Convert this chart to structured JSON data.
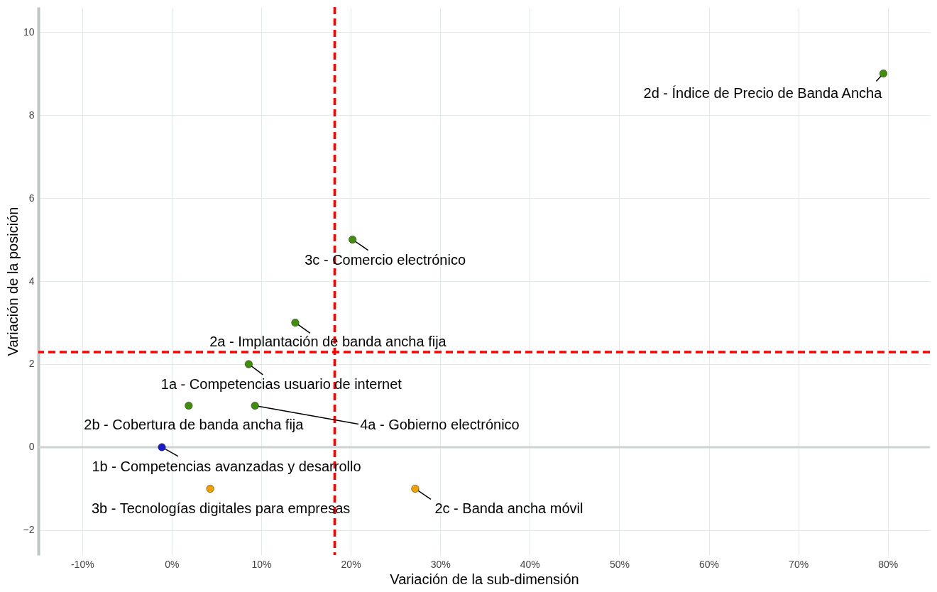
{
  "chart_data": {
    "type": "scatter",
    "xlabel": "Variación de la sub-dimensión",
    "ylabel": "Variación de la posición",
    "x": [
      0.795,
      0.202,
      0.138,
      0.086,
      0.019,
      0.093,
      -0.011,
      0.043,
      0.272
    ],
    "values": [
      9,
      5,
      3,
      2,
      1,
      1,
      0,
      -1,
      -1
    ],
    "colors": [
      "#3f8f0a",
      "#3f8f0a",
      "#3f8f0a",
      "#3f8f0a",
      "#3f8f0a",
      "#3f8f0a",
      "#1a1acc",
      "#f0a000",
      "#f0a000"
    ],
    "xlim": [
      -0.149,
      0.847
    ],
    "ylim": [
      -2.6,
      10.6
    ],
    "xticks": [
      {
        "value": -0.1,
        "label": "-10%"
      },
      {
        "value": 0,
        "label": "0%"
      },
      {
        "value": 0.1,
        "label": "10%"
      },
      {
        "value": 0.2,
        "label": "20%"
      },
      {
        "value": 0.3,
        "label": "30%"
      },
      {
        "value": 0.4,
        "label": "40%"
      },
      {
        "value": 0.5,
        "label": "50%"
      },
      {
        "value": 0.6,
        "label": "60%"
      },
      {
        "value": 0.7,
        "label": "70%"
      },
      {
        "value": 0.8,
        "label": "80%"
      }
    ],
    "yticks": [
      -2,
      0,
      2,
      4,
      6,
      8,
      10
    ],
    "grid": true,
    "marker": "circle",
    "ref_lines": [
      {
        "axis": "y",
        "value": 0,
        "color": "#cdd2d2",
        "line_style": "solid"
      },
      {
        "axis": "x",
        "value": 0.182,
        "color": "#ff0000",
        "line_style": "dashed"
      },
      {
        "axis": "y",
        "value": 2.29,
        "color": "#ff0000",
        "line_style": "dashed"
      }
    ],
    "annotations": [
      {
        "text": "2d - Índice de Precio de Banda Ancha",
        "x": 0.795,
        "y": 9
      },
      {
        "text": "3c - Comercio electrónico",
        "x": 0.202,
        "y": 5
      },
      {
        "text": "2a - Implantación de banda ancha fija",
        "x": 0.138,
        "y": 3
      },
      {
        "text": "1a - Competencias usuario de internet",
        "x": 0.086,
        "y": 2
      },
      {
        "text": "2b - Cobertura de banda ancha fija",
        "x": 0.019,
        "y": 1
      },
      {
        "text": "4a - Gobierno electrónico",
        "x": 0.093,
        "y": 1
      },
      {
        "text": "1b - Competencias avanzadas y desarrollo",
        "x": -0.011,
        "y": 0
      },
      {
        "text": "3b - Tecnologías digitales para empresas",
        "x": 0.043,
        "y": -1
      },
      {
        "text": "2c - Banda ancha móvil",
        "x": 0.272,
        "y": -1
      }
    ]
  }
}
